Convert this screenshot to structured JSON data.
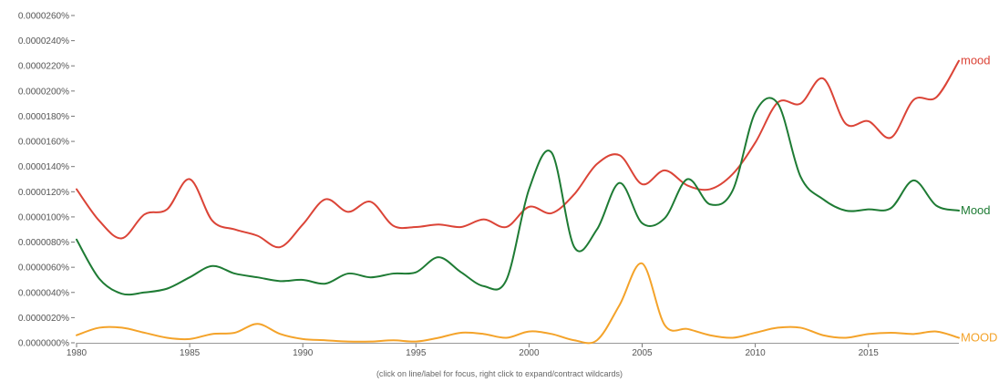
{
  "chart_data": {
    "type": "line",
    "x_range": [
      1980,
      2019
    ],
    "ylim": [
      0,
      2.6e-05
    ],
    "y_ticks": [
      {
        "value": 2.6e-05,
        "label": "0.0000260%"
      },
      {
        "value": 2.4e-05,
        "label": "0.0000240%"
      },
      {
        "value": 2.2e-05,
        "label": "0.0000220%"
      },
      {
        "value": 2e-05,
        "label": "0.0000200%"
      },
      {
        "value": 1.8e-05,
        "label": "0.0000180%"
      },
      {
        "value": 1.6e-05,
        "label": "0.0000160%"
      },
      {
        "value": 1.4e-05,
        "label": "0.0000140%"
      },
      {
        "value": 1.2e-05,
        "label": "0.0000120%"
      },
      {
        "value": 1e-05,
        "label": "0.0000100%"
      },
      {
        "value": 8e-06,
        "label": "0.0000080%"
      },
      {
        "value": 6e-06,
        "label": "0.0000060%"
      },
      {
        "value": 4e-06,
        "label": "0.0000040%"
      },
      {
        "value": 2e-06,
        "label": "0.0000020%"
      },
      {
        "value": 0.0,
        "label": "0.0000000%"
      }
    ],
    "x_ticks": [
      {
        "value": 1980,
        "label": "1980"
      },
      {
        "value": 1985,
        "label": "1985"
      },
      {
        "value": 1990,
        "label": "1990"
      },
      {
        "value": 1995,
        "label": "1995"
      },
      {
        "value": 2000,
        "label": "2000"
      },
      {
        "value": 2005,
        "label": "2005"
      },
      {
        "value": 2010,
        "label": "2010"
      },
      {
        "value": 2015,
        "label": "2015"
      }
    ],
    "grid": false,
    "legend": "inline at right end of each line",
    "series": [
      {
        "name": "mood",
        "color": "#db4437",
        "points": [
          [
            1980,
            1.22e-05
          ],
          [
            1981,
            9.7e-06
          ],
          [
            1982,
            8.3e-06
          ],
          [
            1983,
            1.02e-05
          ],
          [
            1984,
            1.06e-05
          ],
          [
            1985,
            1.3e-05
          ],
          [
            1986,
            9.7e-06
          ],
          [
            1987,
            9e-06
          ],
          [
            1988,
            8.5e-06
          ],
          [
            1989,
            7.6e-06
          ],
          [
            1990,
            9.4e-06
          ],
          [
            1991,
            1.14e-05
          ],
          [
            1992,
            1.04e-05
          ],
          [
            1993,
            1.12e-05
          ],
          [
            1994,
            9.3e-06
          ],
          [
            1995,
            9.2e-06
          ],
          [
            1996,
            9.4e-06
          ],
          [
            1997,
            9.2e-06
          ],
          [
            1998,
            9.8e-06
          ],
          [
            1999,
            9.2e-06
          ],
          [
            2000,
            1.08e-05
          ],
          [
            2001,
            1.03e-05
          ],
          [
            2002,
            1.18e-05
          ],
          [
            2003,
            1.42e-05
          ],
          [
            2004,
            1.49e-05
          ],
          [
            2005,
            1.26e-05
          ],
          [
            2006,
            1.37e-05
          ],
          [
            2007,
            1.25e-05
          ],
          [
            2008,
            1.22e-05
          ],
          [
            2009,
            1.34e-05
          ],
          [
            2010,
            1.59e-05
          ],
          [
            2011,
            1.91e-05
          ],
          [
            2012,
            1.9e-05
          ],
          [
            2013,
            2.1e-05
          ],
          [
            2014,
            1.74e-05
          ],
          [
            2015,
            1.76e-05
          ],
          [
            2016,
            1.63e-05
          ],
          [
            2017,
            1.93e-05
          ],
          [
            2018,
            1.95e-05
          ],
          [
            2019,
            2.24e-05
          ]
        ]
      },
      {
        "name": "Mood",
        "color": "#1e7b34",
        "points": [
          [
            1980,
            8.2e-06
          ],
          [
            1981,
            5.1e-06
          ],
          [
            1982,
            3.9e-06
          ],
          [
            1983,
            4e-06
          ],
          [
            1984,
            4.3e-06
          ],
          [
            1985,
            5.2e-06
          ],
          [
            1986,
            6.1e-06
          ],
          [
            1987,
            5.5e-06
          ],
          [
            1988,
            5.2e-06
          ],
          [
            1989,
            4.9e-06
          ],
          [
            1990,
            5e-06
          ],
          [
            1991,
            4.7e-06
          ],
          [
            1992,
            5.5e-06
          ],
          [
            1993,
            5.2e-06
          ],
          [
            1994,
            5.5e-06
          ],
          [
            1995,
            5.6e-06
          ],
          [
            1996,
            6.8e-06
          ],
          [
            1997,
            5.6e-06
          ],
          [
            1998,
            4.5e-06
          ],
          [
            1999,
            5e-06
          ],
          [
            2000,
            1.22e-05
          ],
          [
            2001,
            1.51e-05
          ],
          [
            2002,
            7.6e-06
          ],
          [
            2003,
            9e-06
          ],
          [
            2004,
            1.27e-05
          ],
          [
            2005,
            9.5e-06
          ],
          [
            2006,
            9.9e-06
          ],
          [
            2007,
            1.3e-05
          ],
          [
            2008,
            1.1e-05
          ],
          [
            2009,
            1.21e-05
          ],
          [
            2010,
            1.83e-05
          ],
          [
            2011,
            1.9e-05
          ],
          [
            2012,
            1.32e-05
          ],
          [
            2013,
            1.14e-05
          ],
          [
            2014,
            1.05e-05
          ],
          [
            2015,
            1.06e-05
          ],
          [
            2016,
            1.07e-05
          ],
          [
            2017,
            1.29e-05
          ],
          [
            2018,
            1.09e-05
          ],
          [
            2019,
            1.05e-05
          ]
        ]
      },
      {
        "name": "MOOD",
        "color": "#f4a32a",
        "points": [
          [
            1980,
            6e-07
          ],
          [
            1981,
            1.2e-06
          ],
          [
            1982,
            1.2e-06
          ],
          [
            1983,
            8e-07
          ],
          [
            1984,
            4e-07
          ],
          [
            1985,
            3e-07
          ],
          [
            1986,
            7e-07
          ],
          [
            1987,
            8e-07
          ],
          [
            1988,
            1.5e-06
          ],
          [
            1989,
            7e-07
          ],
          [
            1990,
            3e-07
          ],
          [
            1991,
            2e-07
          ],
          [
            1992,
            1e-07
          ],
          [
            1993,
            1e-07
          ],
          [
            1994,
            2e-07
          ],
          [
            1995,
            1e-07
          ],
          [
            1996,
            4e-07
          ],
          [
            1997,
            8e-07
          ],
          [
            1998,
            7e-07
          ],
          [
            1999,
            4e-07
          ],
          [
            2000,
            9e-07
          ],
          [
            2001,
            7e-07
          ],
          [
            2002,
            2e-07
          ],
          [
            2003,
            2e-07
          ],
          [
            2004,
            3e-06
          ],
          [
            2005,
            6.3e-06
          ],
          [
            2006,
            1.4e-06
          ],
          [
            2007,
            1.1e-06
          ],
          [
            2008,
            6e-07
          ],
          [
            2009,
            4e-07
          ],
          [
            2010,
            8e-07
          ],
          [
            2011,
            1.2e-06
          ],
          [
            2012,
            1.2e-06
          ],
          [
            2013,
            6e-07
          ],
          [
            2014,
            4e-07
          ],
          [
            2015,
            7e-07
          ],
          [
            2016,
            8e-07
          ],
          [
            2017,
            7e-07
          ],
          [
            2018,
            9e-07
          ],
          [
            2019,
            4e-07
          ]
        ]
      }
    ]
  },
  "footnote": "(click on line/label for focus, right click to expand/contract wildcards)"
}
